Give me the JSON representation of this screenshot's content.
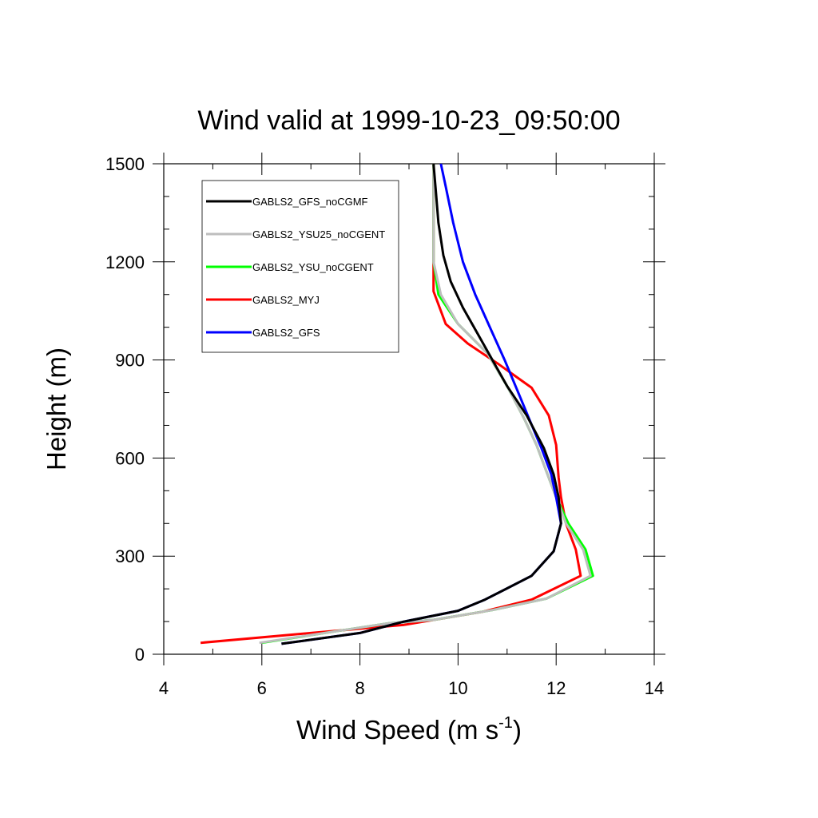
{
  "chart_data": {
    "type": "line",
    "title": "Wind valid at 1999-10-23_09:50:00",
    "xlabel": "Wind Speed (m s",
    "xlabel_sup": "-1",
    "xlabel_end": ")",
    "ylabel": "Height (m)",
    "xlim": [
      4,
      14
    ],
    "ylim": [
      0,
      1500
    ],
    "xticks": [
      4,
      6,
      8,
      10,
      12,
      14
    ],
    "yticks": [
      0,
      300,
      600,
      900,
      1200,
      1500
    ],
    "legend_position": "top-left",
    "series": [
      {
        "name": "GABLS2_GFS_noCGMF",
        "color": "#000000",
        "points": [
          [
            6.4,
            32
          ],
          [
            8.0,
            65
          ],
          [
            8.9,
            100
          ],
          [
            10.0,
            133
          ],
          [
            10.55,
            167
          ],
          [
            11.5,
            240
          ],
          [
            11.95,
            315
          ],
          [
            12.1,
            400
          ],
          [
            12.05,
            480
          ],
          [
            11.95,
            550
          ],
          [
            11.75,
            630
          ],
          [
            11.4,
            730
          ],
          [
            11.0,
            820
          ],
          [
            10.7,
            900
          ],
          [
            10.4,
            980
          ],
          [
            10.1,
            1060
          ],
          [
            9.85,
            1140
          ],
          [
            9.7,
            1220
          ],
          [
            9.6,
            1320
          ],
          [
            9.55,
            1410
          ],
          [
            9.5,
            1500
          ]
        ]
      },
      {
        "name": "GABLS2_YSU25_noCGENT",
        "color": "#bebebe",
        "points": [
          [
            5.95,
            35
          ],
          [
            7.5,
            70
          ],
          [
            8.6,
            95
          ],
          [
            9.5,
            105
          ],
          [
            10.7,
            135
          ],
          [
            11.8,
            170
          ],
          [
            12.7,
            240
          ],
          [
            12.55,
            320
          ],
          [
            12.2,
            400
          ],
          [
            12.0,
            480
          ],
          [
            11.8,
            560
          ],
          [
            11.6,
            640
          ],
          [
            11.35,
            720
          ],
          [
            11.0,
            820
          ],
          [
            10.6,
            920
          ],
          [
            10.0,
            1010
          ],
          [
            9.65,
            1100
          ],
          [
            9.5,
            1200
          ],
          [
            9.5,
            1350
          ],
          [
            9.5,
            1500
          ]
        ]
      },
      {
        "name": "GABLS2_YSU_noCGENT",
        "color": "#00ff00",
        "points": [
          [
            6.0,
            35
          ],
          [
            7.5,
            70
          ],
          [
            8.6,
            95
          ],
          [
            9.5,
            105
          ],
          [
            10.7,
            135
          ],
          [
            11.8,
            170
          ],
          [
            12.75,
            240
          ],
          [
            12.6,
            320
          ],
          [
            12.25,
            400
          ],
          [
            12.0,
            480
          ],
          [
            11.8,
            560
          ],
          [
            11.6,
            640
          ],
          [
            11.35,
            720
          ],
          [
            11.0,
            820
          ],
          [
            10.6,
            920
          ],
          [
            10.0,
            1010
          ],
          [
            9.6,
            1100
          ],
          [
            9.5,
            1200
          ],
          [
            9.5,
            1350
          ],
          [
            9.5,
            1500
          ]
        ]
      },
      {
        "name": "GABLS2_MYJ",
        "color": "#ff0000",
        "points": [
          [
            4.75,
            35
          ],
          [
            7.0,
            65
          ],
          [
            8.9,
            90
          ],
          [
            10.5,
            130
          ],
          [
            11.5,
            167
          ],
          [
            12.5,
            240
          ],
          [
            12.4,
            320
          ],
          [
            12.2,
            400
          ],
          [
            12.1,
            480
          ],
          [
            12.05,
            540
          ],
          [
            12.0,
            640
          ],
          [
            11.85,
            730
          ],
          [
            11.5,
            815
          ],
          [
            10.8,
            890
          ],
          [
            10.2,
            950
          ],
          [
            9.75,
            1010
          ],
          [
            9.5,
            1110
          ],
          [
            9.5,
            1200
          ],
          [
            9.5,
            1350
          ],
          [
            9.5,
            1500
          ]
        ]
      },
      {
        "name": "GABLS2_GFS",
        "color": "#0000ff",
        "points": [
          [
            6.4,
            32
          ],
          [
            8.0,
            65
          ],
          [
            8.9,
            100
          ],
          [
            10.0,
            133
          ],
          [
            10.55,
            167
          ],
          [
            11.5,
            240
          ],
          [
            11.95,
            315
          ],
          [
            12.1,
            400
          ],
          [
            12.0,
            480
          ],
          [
            11.9,
            550
          ],
          [
            11.7,
            630
          ],
          [
            11.45,
            720
          ],
          [
            11.2,
            810
          ],
          [
            10.95,
            900
          ],
          [
            10.65,
            1000
          ],
          [
            10.35,
            1100
          ],
          [
            10.1,
            1200
          ],
          [
            9.9,
            1320
          ],
          [
            9.75,
            1430
          ],
          [
            9.65,
            1500
          ]
        ]
      }
    ]
  }
}
